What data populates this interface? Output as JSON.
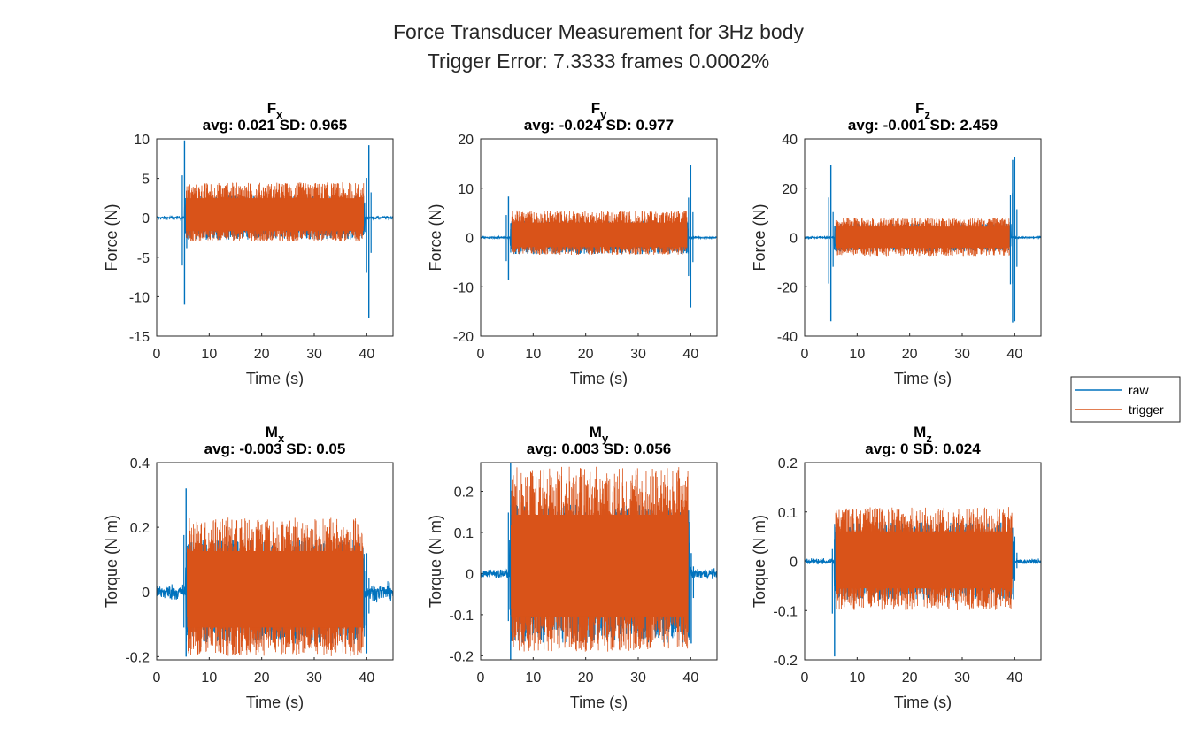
{
  "figure": {
    "title_line1": "Force Transducer Measurement for 3Hz body",
    "title_line2": "Trigger Error: 7.3333 frames 0.0002%"
  },
  "legend": {
    "position": "east-outside",
    "entries": [
      {
        "name": "raw",
        "color": "#0072BD"
      },
      {
        "name": "trigger",
        "color": "#D95319"
      }
    ]
  },
  "chart_data": [
    {
      "type": "line",
      "title_symbol": "F",
      "title_sub": "x",
      "stats": "avg: 0.021 SD: 0.965",
      "xlabel": "Time (s)",
      "ylabel": "Force (N)",
      "xlim": [
        0,
        45
      ],
      "ylim": [
        -15,
        10
      ],
      "xticks": [
        0,
        10,
        20,
        30,
        40
      ],
      "yticks": [
        -15,
        -10,
        -5,
        0,
        5,
        10
      ],
      "ytick_labels": [
        "-15",
        "-10",
        "-5",
        "0",
        "5",
        "10"
      ],
      "trigger_window": [
        5.6,
        39.4
      ],
      "series": [
        {
          "name": "raw",
          "color": "#0072BD",
          "baseline_noise": 0.1,
          "spikes": [
            {
              "t": 5.3,
              "min": -11.0,
              "max": 9.8
            },
            {
              "t": 40.4,
              "min": -12.7,
              "max": 9.2
            }
          ],
          "range_within_trigger": [
            -3,
            4.5
          ]
        },
        {
          "name": "trigger",
          "color": "#D95319",
          "range": [
            -3,
            4.5
          ],
          "avg": 0.021,
          "sd": 0.965
        }
      ]
    },
    {
      "type": "line",
      "title_symbol": "F",
      "title_sub": "y",
      "stats": "avg: -0.024 SD: 0.977",
      "xlabel": "Time (s)",
      "ylabel": "Force (N)",
      "xlim": [
        0,
        45
      ],
      "ylim": [
        -20,
        20
      ],
      "xticks": [
        0,
        10,
        20,
        30,
        40
      ],
      "yticks": [
        -20,
        -10,
        0,
        10,
        20
      ],
      "ytick_labels": [
        "-20",
        "-10",
        "0",
        "10",
        "20"
      ],
      "trigger_window": [
        5.9,
        39.3
      ],
      "series": [
        {
          "name": "raw",
          "color": "#0072BD",
          "baseline_noise": 0.1,
          "spikes": [
            {
              "t": 5.3,
              "min": -8.7,
              "max": 8.3
            },
            {
              "t": 40.0,
              "min": -14.2,
              "max": 14.7
            }
          ],
          "range_within_trigger": [
            -3.5,
            5.5
          ]
        },
        {
          "name": "trigger",
          "color": "#D95319",
          "range": [
            -3.5,
            5.5
          ],
          "avg": -0.024,
          "sd": 0.977
        }
      ]
    },
    {
      "type": "line",
      "title_symbol": "F",
      "title_sub": "z",
      "stats": "avg: -0.001 SD: 2.459",
      "xlabel": "Time (s)",
      "ylabel": "Force (N)",
      "xlim": [
        0,
        45
      ],
      "ylim": [
        -40,
        40
      ],
      "xticks": [
        0,
        10,
        20,
        30,
        40
      ],
      "yticks": [
        -40,
        -20,
        0,
        20,
        40
      ],
      "ytick_labels": [
        "-40",
        "-20",
        "0",
        "20",
        "40"
      ],
      "trigger_window": [
        5.9,
        39.0
      ],
      "series": [
        {
          "name": "raw",
          "color": "#0072BD",
          "baseline_noise": 0.2,
          "spikes": [
            {
              "t": 5.0,
              "min": -34.0,
              "max": 29.5
            },
            {
              "t": 39.6,
              "min": -34.5,
              "max": 31.5
            },
            {
              "t": 40.0,
              "min": -34.0,
              "max": 32.8
            }
          ],
          "range_within_trigger": [
            -7.5,
            8.0
          ]
        },
        {
          "name": "trigger",
          "color": "#D95319",
          "range": [
            -7.5,
            8.0
          ],
          "avg": -0.001,
          "sd": 2.459
        }
      ]
    },
    {
      "type": "line",
      "title_symbol": "M",
      "title_sub": "x",
      "stats": "avg: -0.003 SD: 0.05",
      "xlabel": "Time (s)",
      "ylabel": "Torque (N m)",
      "xlim": [
        0,
        45
      ],
      "ylim": [
        -0.21,
        0.4
      ],
      "xticks": [
        0,
        10,
        20,
        30,
        40
      ],
      "yticks": [
        -0.2,
        0,
        0.2,
        0.4
      ],
      "ytick_labels": [
        "-0.2",
        "0",
        "0.2",
        "0.4"
      ],
      "trigger_window": [
        5.8,
        39.3
      ],
      "series": [
        {
          "name": "raw",
          "color": "#0072BD",
          "baseline_noise": 0.012,
          "spikes": [
            {
              "t": 5.6,
              "min": -0.2,
              "max": 0.32
            },
            {
              "t": 40.0,
              "min": -0.19,
              "max": 0.12
            }
          ],
          "range_within_trigger": [
            -0.2,
            0.23
          ]
        },
        {
          "name": "trigger",
          "color": "#D95319",
          "range": [
            -0.2,
            0.23
          ],
          "avg": -0.003,
          "sd": 0.05
        }
      ]
    },
    {
      "type": "line",
      "title_symbol": "M",
      "title_sub": "y",
      "stats": "avg: 0.003 SD: 0.056",
      "xlabel": "Time (s)",
      "ylabel": "Torque (N m)",
      "xlim": [
        0,
        45
      ],
      "ylim": [
        -0.21,
        0.27
      ],
      "xticks": [
        0,
        10,
        20,
        30,
        40
      ],
      "yticks": [
        -0.2,
        -0.1,
        0,
        0.1,
        0.2
      ],
      "ytick_labels": [
        "-0.2",
        "-0.1",
        "0",
        "0.1",
        "0.2"
      ],
      "trigger_window": [
        5.8,
        39.5
      ],
      "series": [
        {
          "name": "raw",
          "color": "#0072BD",
          "baseline_noise": 0.006,
          "spikes": [
            {
              "t": 5.7,
              "min": -0.21,
              "max": 0.27
            },
            {
              "t": 40.1,
              "min": -0.17,
              "max": 0.05
            }
          ],
          "range_within_trigger": [
            -0.19,
            0.26
          ]
        },
        {
          "name": "trigger",
          "color": "#D95319",
          "range": [
            -0.19,
            0.26
          ],
          "avg": 0.003,
          "sd": 0.056
        }
      ]
    },
    {
      "type": "line",
      "title_symbol": "M",
      "title_sub": "z",
      "stats": "avg: 0 SD: 0.024",
      "xlabel": "Time (s)",
      "ylabel": "Torque (N m)",
      "xlim": [
        0,
        45
      ],
      "ylim": [
        -0.2,
        0.2
      ],
      "xticks": [
        0,
        10,
        20,
        30,
        40
      ],
      "yticks": [
        -0.2,
        -0.1,
        0,
        0.1,
        0.2
      ],
      "ytick_labels": [
        "-0.2",
        "-0.1",
        "0",
        "0.1",
        "0.2"
      ],
      "trigger_window": [
        5.9,
        39.5
      ],
      "series": [
        {
          "name": "raw",
          "color": "#0072BD",
          "baseline_noise": 0.003,
          "spikes": [
            {
              "t": 5.7,
              "min": -0.193,
              "max": 0.045
            },
            {
              "t": 40.0,
              "min": -0.04,
              "max": 0.05
            }
          ],
          "range_within_trigger": [
            -0.1,
            0.11
          ]
        },
        {
          "name": "trigger",
          "color": "#D95319",
          "range": [
            -0.1,
            0.11
          ],
          "avg": 0.0,
          "sd": 0.024
        }
      ]
    }
  ]
}
